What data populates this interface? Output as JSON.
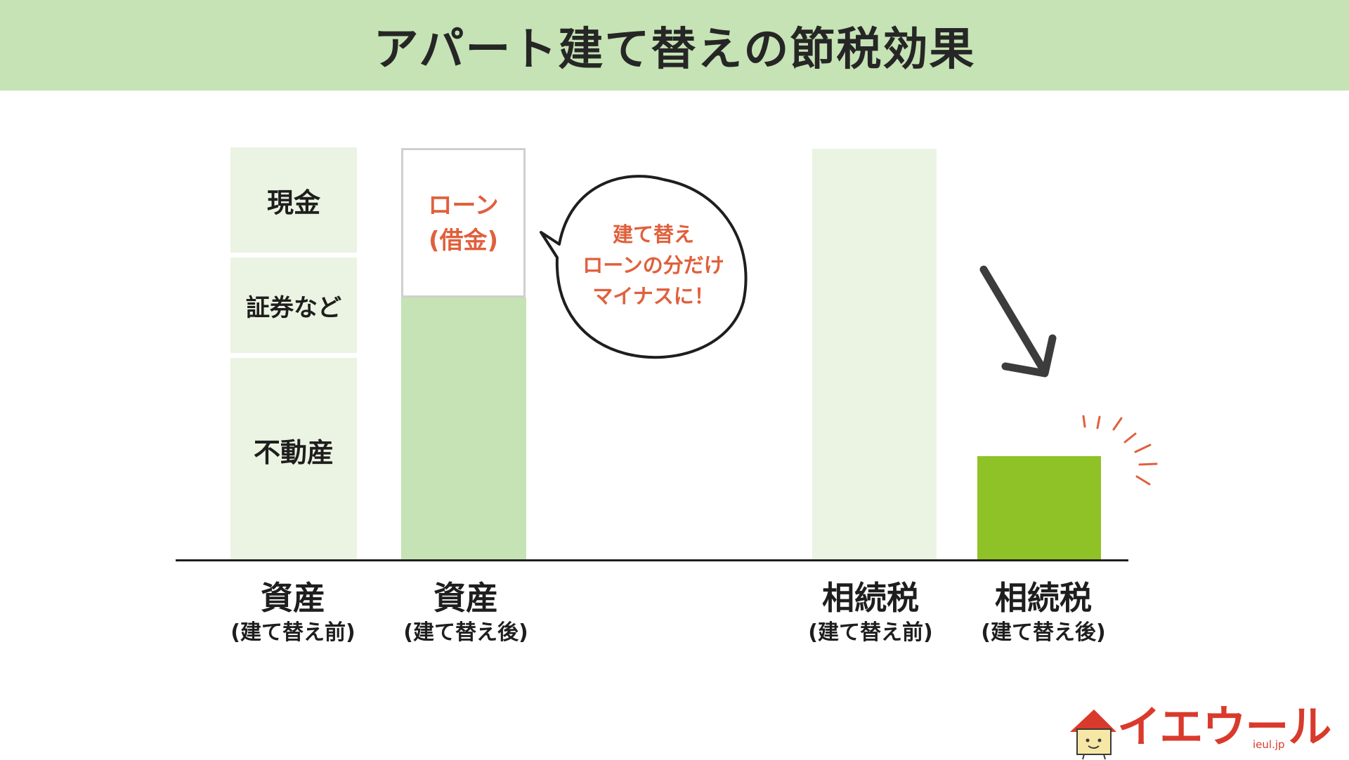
{
  "title": "アパート建て替えの節税効果",
  "asset_before": {
    "segments": [
      "現金",
      "証券など",
      "不動産"
    ],
    "label": "資産",
    "sublabel": "(建て替え前)"
  },
  "asset_after": {
    "loan_line1": "ローン",
    "loan_line2": "(借金)",
    "label": "資産",
    "sublabel": "(建て替え後)"
  },
  "bubble": {
    "line1": "建て替え",
    "line2": "ローンの分だけ",
    "line3": "マイナスに！"
  },
  "tax_before": {
    "label": "相続税",
    "sublabel": "(建て替え前)"
  },
  "tax_after": {
    "label": "相続税",
    "sublabel": "(建て替え後)"
  },
  "logo": {
    "text": "イエウール",
    "domain": "ieul.jp"
  },
  "colors": {
    "header_bg": "#c5e3b4",
    "light_green": "#ebf3e2",
    "mid_green": "#c5e3b4",
    "bright_green": "#8fc226",
    "accent_red": "#e0603c",
    "arrow": "#3c3c3c"
  }
}
